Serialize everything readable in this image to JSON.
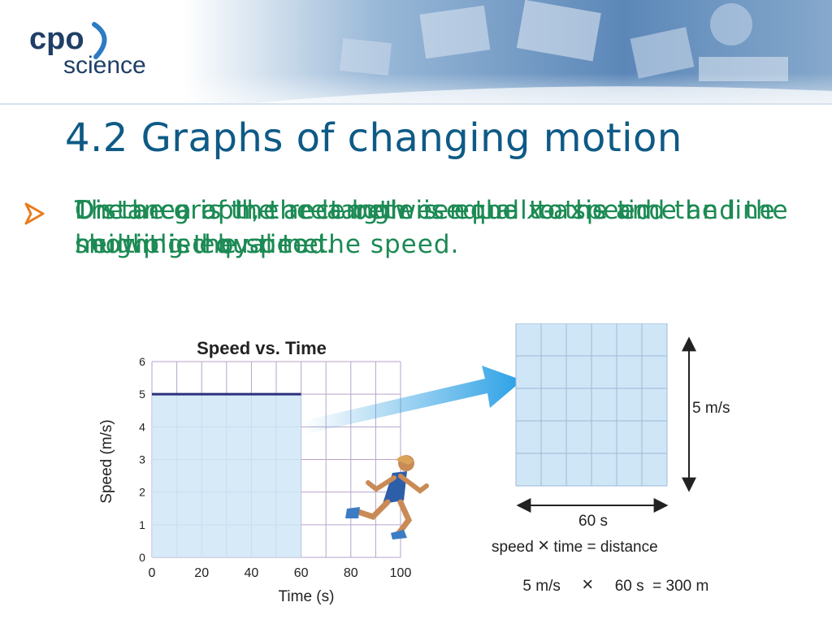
{
  "header": {
    "logo_top": "cpo",
    "logo_bottom": "science"
  },
  "slide": {
    "title": "4.2 Graphs of changing motion",
    "bullet_line_a": "The area of the rectangle is equal to speed multiplied by time.",
    "bullet_line_b": "On the graph, the length is equal to the time and the height is equal to the speed.",
    "bullet_line_c_prefix": "Distance is the area between the ",
    "bullet_line_c_var": "x",
    "bullet_line_c_suffix": "-axis and the line showing the speed.",
    "accent_color": "#1c8a54",
    "title_color": "#0e5a86"
  },
  "chart_data": {
    "type": "line",
    "title": "Speed vs. Time",
    "xlabel": "Time (s)",
    "ylabel": "Speed (m/s)",
    "xlim": [
      0,
      100
    ],
    "ylim": [
      0,
      6
    ],
    "xticks": [
      0,
      20,
      40,
      60,
      80,
      100
    ],
    "yticks": [
      0,
      1,
      2,
      3,
      4,
      5,
      6
    ],
    "grid": true,
    "series": [
      {
        "x": [
          0,
          60
        ],
        "y": [
          5,
          5
        ]
      }
    ],
    "shaded_area": {
      "x_from": 0,
      "x_to": 60,
      "y_from": 0,
      "y_to": 5
    }
  },
  "rectangle": {
    "height_label": "5 m/s",
    "width_label": "60 s",
    "formula_speed": "speed",
    "formula_times": "×",
    "formula_rest": "time = distance",
    "calc_left": "5 m/s",
    "calc_times": "×",
    "calc_right": "60 s  = 300 m"
  }
}
